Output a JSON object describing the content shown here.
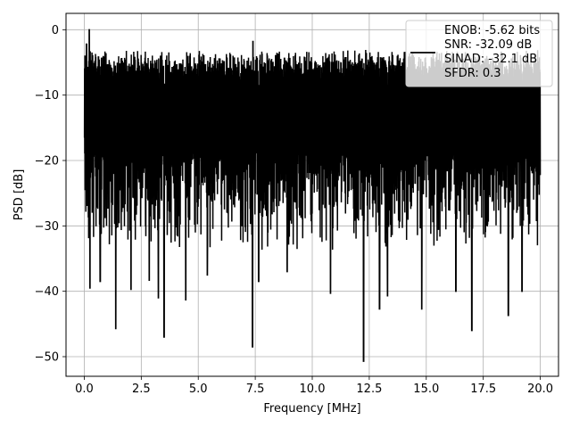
{
  "chart_data": {
    "type": "line",
    "title": "",
    "xlabel": "Frequency [MHz]",
    "ylabel": "PSD [dB]",
    "xlim": [
      -0.8,
      20.8
    ],
    "ylim": [
      -53,
      2.5
    ],
    "x_ticks": [
      0.0,
      2.5,
      5.0,
      7.5,
      10.0,
      12.5,
      15.0,
      17.5,
      20.0
    ],
    "x_tick_labels": [
      "0.0",
      "2.5",
      "5.0",
      "7.5",
      "10.0",
      "12.5",
      "15.0",
      "17.5",
      "20.0"
    ],
    "y_ticks": [
      0,
      -10,
      -20,
      -30,
      -40,
      -50
    ],
    "y_tick_labels": [
      "0",
      "−10",
      "−20",
      "−30",
      "−40",
      "−50"
    ],
    "grid": true,
    "legend_position": "top-right",
    "legend_entries": [
      "ENOB: -5.62 bits",
      "SNR: -32.09 dB",
      "SINAD: -32.1 dB",
      "SFDR: 0.3"
    ],
    "series": [
      {
        "color": "#000000",
        "style": "noise",
        "x_range": [
          0.0,
          20.0
        ],
        "typical_max": -3,
        "typical_min": -26,
        "peaks": [
          [
            0.22,
            0.0
          ],
          [
            0.1,
            -2.2
          ],
          [
            7.4,
            -1.8
          ],
          [
            0.0,
            -16.5
          ]
        ],
        "dips": [
          [
            0.25,
            -39.5
          ],
          [
            0.7,
            -38.5
          ],
          [
            1.38,
            -45.7
          ],
          [
            2.05,
            -39.7
          ],
          [
            2.85,
            -38.3
          ],
          [
            3.25,
            -41.0
          ],
          [
            3.5,
            -47.0
          ],
          [
            4.45,
            -41.3
          ],
          [
            5.4,
            -37.5
          ],
          [
            7.38,
            -48.5
          ],
          [
            7.65,
            -38.5
          ],
          [
            8.9,
            -37.0
          ],
          [
            10.8,
            -40.3
          ],
          [
            12.25,
            -50.7
          ],
          [
            12.95,
            -42.7
          ],
          [
            13.3,
            -40.7
          ],
          [
            14.8,
            -42.7
          ],
          [
            16.3,
            -40.0
          ],
          [
            17.0,
            -46.0
          ],
          [
            18.6,
            -43.7
          ],
          [
            19.2,
            -40.0
          ]
        ]
      }
    ]
  }
}
